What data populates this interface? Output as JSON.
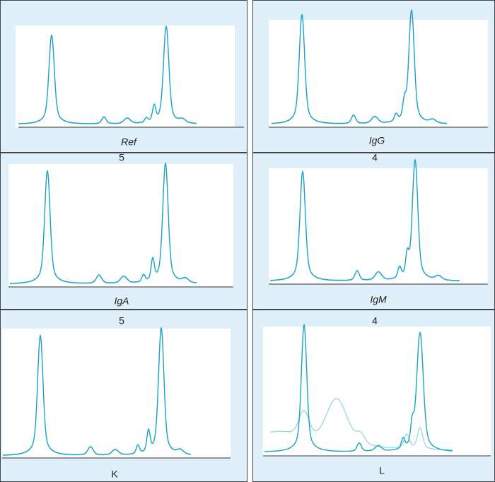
{
  "panels": [
    {
      "label": "Ref"
    },
    {
      "label": "IgG"
    },
    {
      "top_label": "5",
      "label": "IgA"
    },
    {
      "top_label": "4",
      "label": "IgM"
    },
    {
      "top_label": "5",
      "label": "K"
    },
    {
      "top_label": "4",
      "label": "L"
    }
  ]
}
